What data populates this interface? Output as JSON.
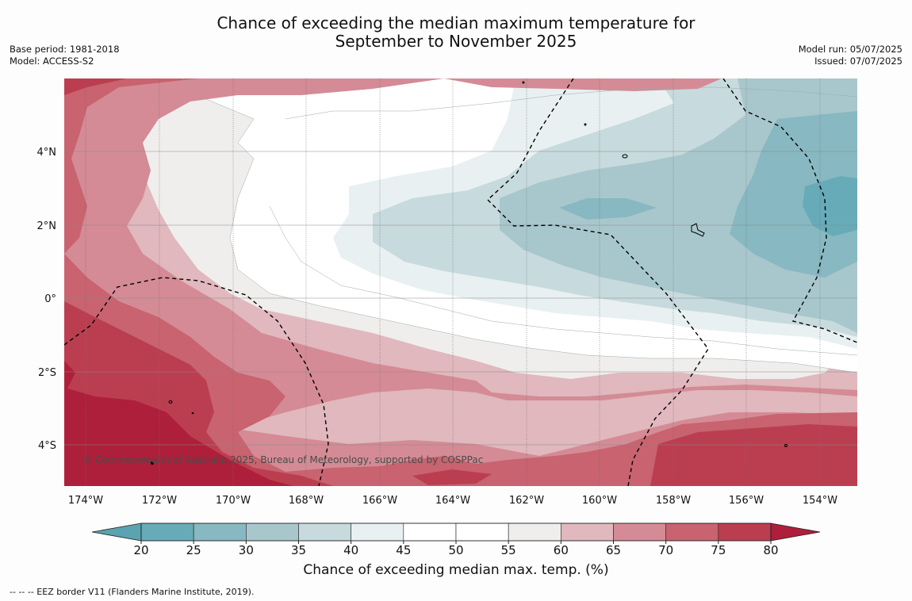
{
  "title": {
    "line1": "Chance of exceeding the median maximum temperature for",
    "line2": "September to November 2025"
  },
  "meta_left": {
    "base_period": "Base period: 1981-2018",
    "model": "Model: ACCESS-S2"
  },
  "meta_right": {
    "model_run": "Model run: 05/07/2025",
    "issued": "Issued: 07/07/2025"
  },
  "map": {
    "lon_labels": [
      "174°W",
      "172°W",
      "170°W",
      "168°W",
      "166°W",
      "164°W",
      "162°W",
      "160°W",
      "158°W",
      "156°W",
      "154°W"
    ],
    "lat_labels": [
      "4°N",
      "2°N",
      "0°",
      "2°S",
      "4°S"
    ],
    "copyright": "© Commonwealth of Australia 2025, Bureau of Meteorology, supported by COSPPac"
  },
  "colorbar": {
    "ticks": [
      "20",
      "25",
      "30",
      "35",
      "40",
      "45",
      "50",
      "55",
      "60",
      "65",
      "70",
      "75",
      "80"
    ],
    "colors": [
      "#67abb8",
      "#88b8c1",
      "#a8c7cc",
      "#c7dadd",
      "#e8f0f1",
      "#ffffff",
      "#ffffff",
      "#efeeed",
      "#e0b8bd",
      "#d48b95",
      "#c8636f",
      "#bb3e50"
    ],
    "low_extend_color": "#5aa3b1",
    "high_extend_color": "#ae1f3b",
    "label": "Chance of exceeding median max. temp. (%)"
  },
  "footnote": "--  --  -- EEZ border V11 (Flanders Marine Institute, 2019)."
}
